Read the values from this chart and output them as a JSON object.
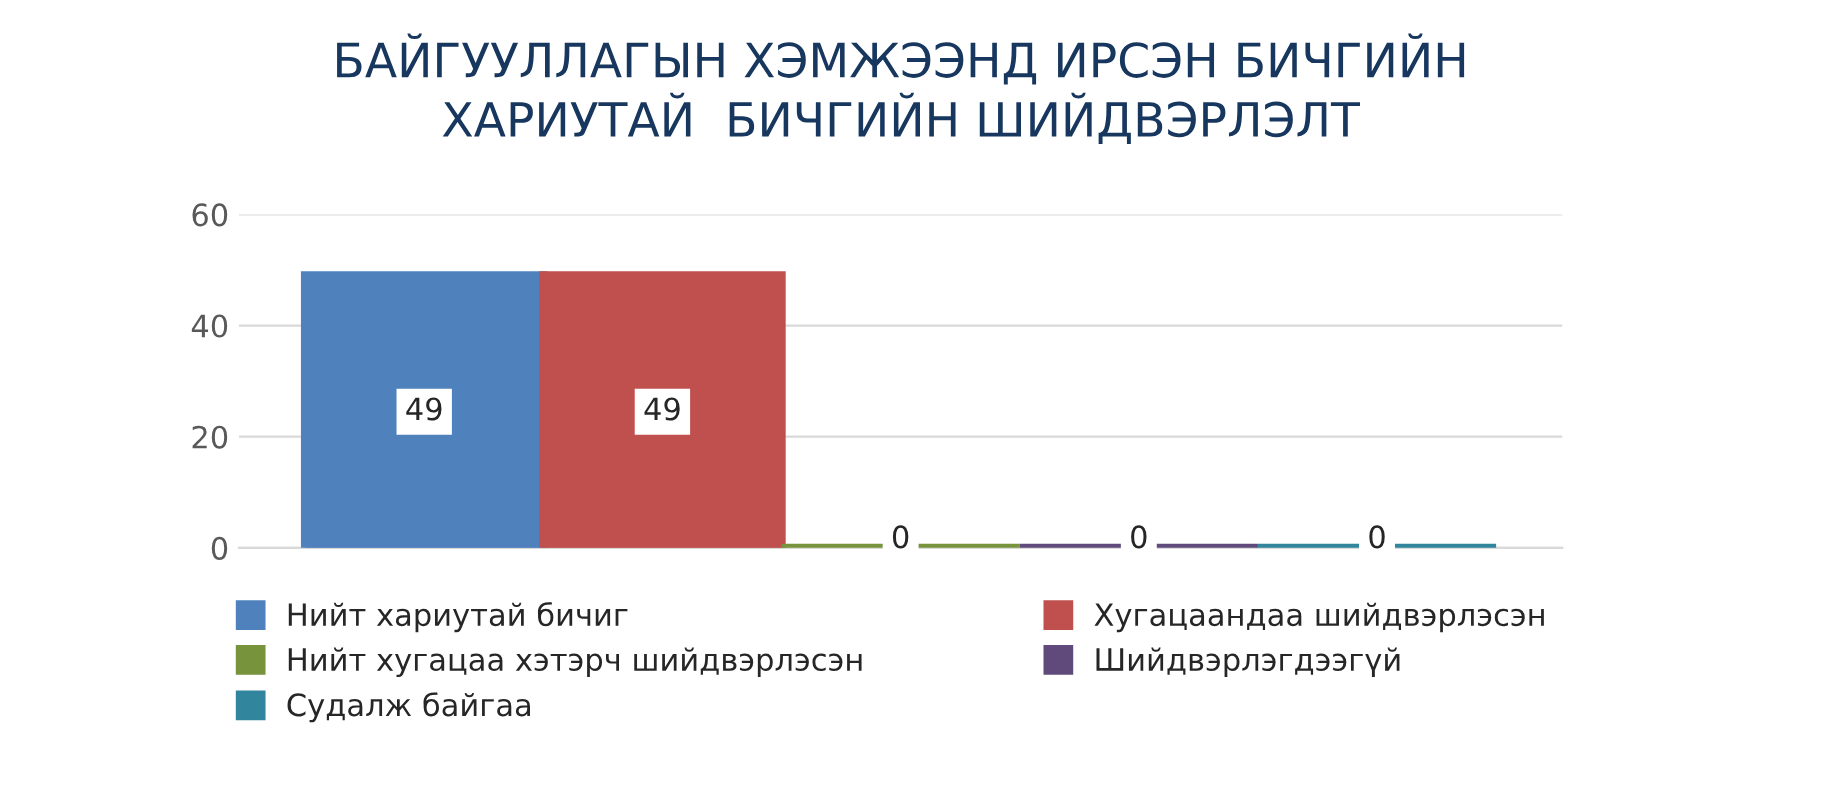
{
  "chart_data": {
    "type": "bar",
    "title": "БАЙГУУЛЛАГЫН ХЭМЖЭЭНД ИРСЭН БИЧГИЙН\nХАРИУТАЙ  БИЧГИЙН ШИЙДВЭРЛЭЛТ",
    "categories": [
      null
    ],
    "series": [
      {
        "name": "Нийт хариутай бичиг",
        "color": "#4f81bd",
        "values": [
          49
        ]
      },
      {
        "name": "Хугацаандаа шийдвэрлэсэн",
        "color": "#c0504d",
        "values": [
          49
        ]
      },
      {
        "name": "Нийт хугацаа хэтэрч шийдвэрлэсэн",
        "color": "#77933c",
        "values": [
          0
        ]
      },
      {
        "name": "Шийдвэрлэгдээгүй",
        "color": "#604a7b",
        "values": [
          0
        ]
      },
      {
        "name": "Судалж байгаа",
        "color": "#31859c",
        "values": [
          0
        ]
      }
    ],
    "ylim": [
      0,
      60
    ],
    "yticks": [
      0,
      20,
      40,
      60
    ],
    "grid": "y",
    "data_labels": true,
    "legend": "bottom"
  }
}
